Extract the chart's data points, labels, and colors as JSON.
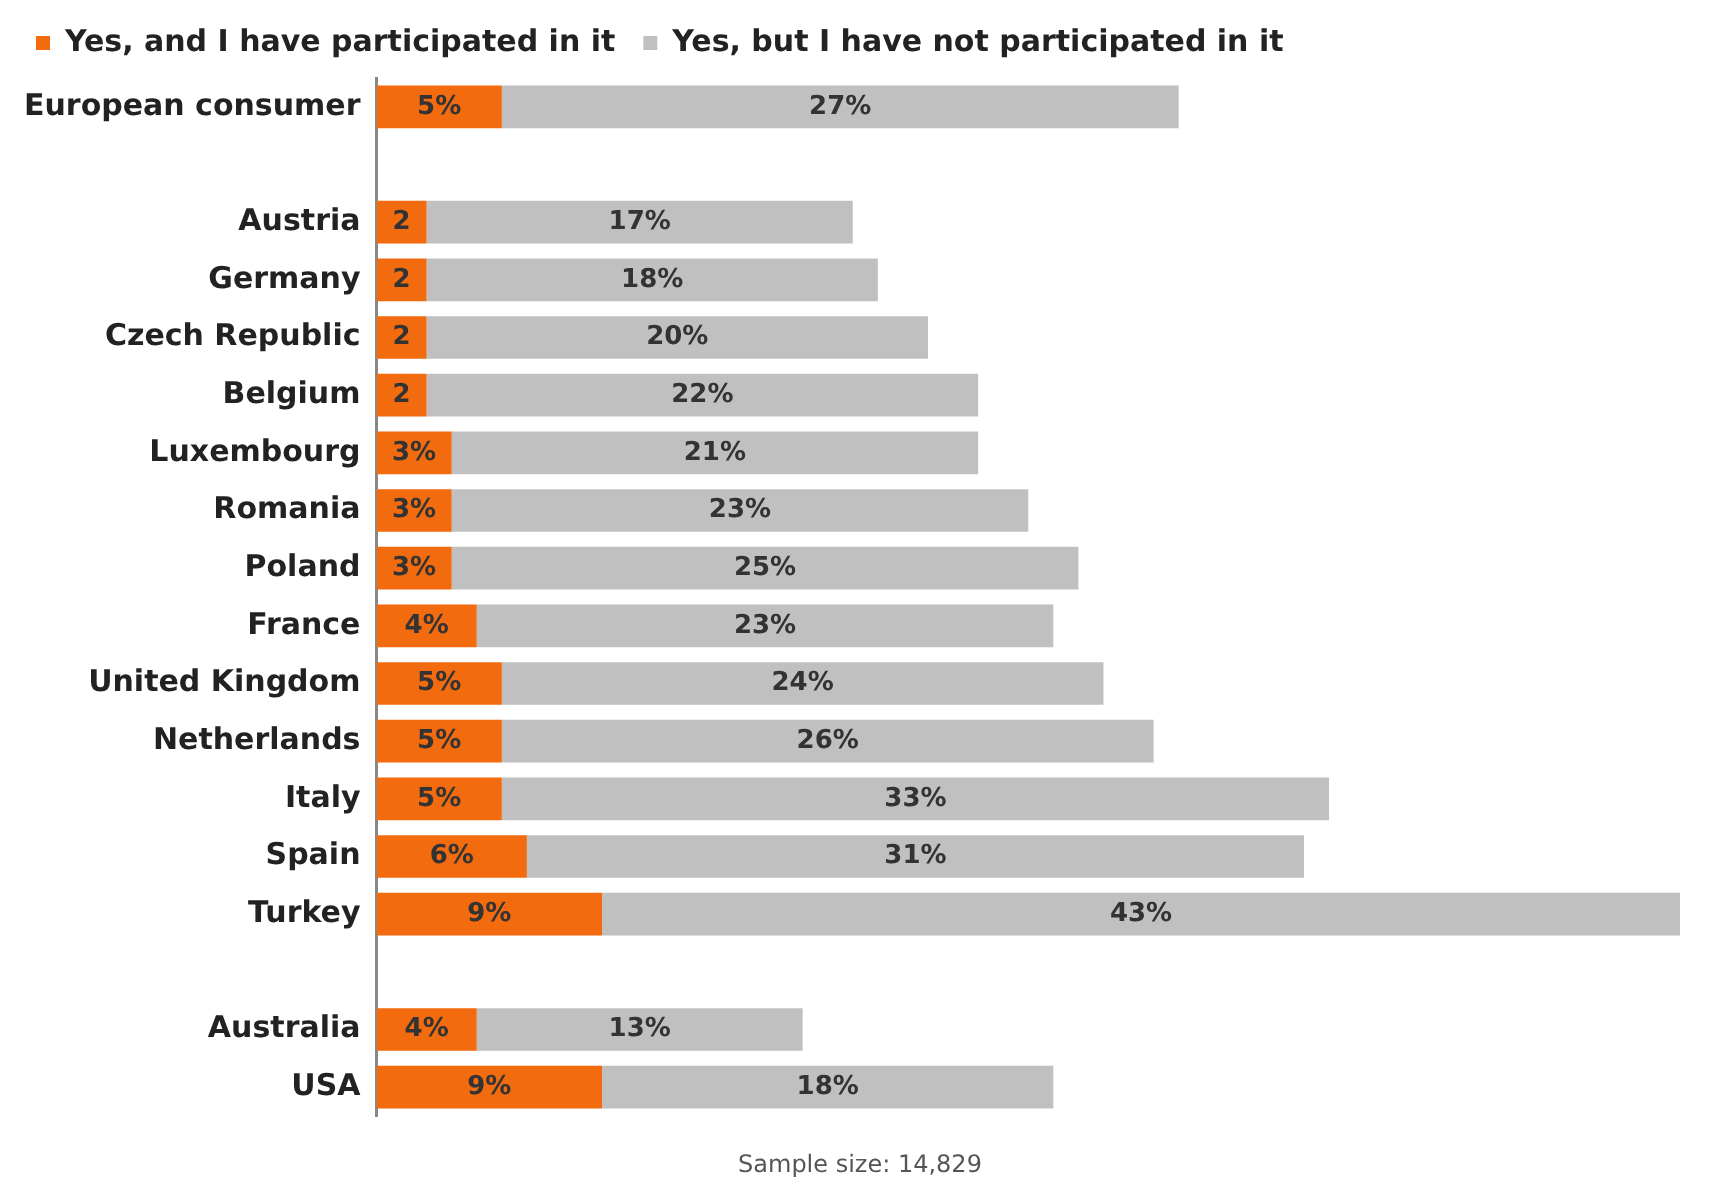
{
  "chart_data": {
    "type": "bar",
    "orientation": "horizontal",
    "stacked": true,
    "categories": [
      "European consumer",
      null,
      "Austria",
      "Germany",
      "Czech Republic",
      "Belgium",
      "Luxembourg",
      "Romania",
      "Poland",
      "France",
      "United Kingdom",
      "Netherlands",
      "Italy",
      "Spain",
      "Turkey",
      null,
      "Australia",
      "USA"
    ],
    "series": [
      {
        "name": "Yes, and I have participated in it",
        "color": "#f26b0f",
        "values": [
          5,
          null,
          2,
          2,
          2,
          2,
          3,
          3,
          3,
          4,
          5,
          5,
          5,
          6,
          9,
          null,
          4,
          9
        ],
        "value_labels": [
          "5%",
          null,
          "2",
          "2",
          "2",
          "2",
          "3%",
          "3%",
          "3%",
          "4%",
          "5%",
          "5%",
          "5%",
          "6%",
          "9%",
          null,
          "4%",
          "9%"
        ]
      },
      {
        "name": "Yes, but I have not participated in it",
        "color": "#c0c0c0",
        "values": [
          27,
          null,
          17,
          18,
          20,
          22,
          21,
          23,
          25,
          23,
          24,
          26,
          33,
          31,
          43,
          null,
          13,
          18
        ],
        "value_labels": [
          "27%",
          null,
          "17%",
          "18%",
          "20%",
          "22%",
          "21%",
          "23%",
          "25%",
          "23%",
          "24%",
          "26%",
          "33%",
          "31%",
          "43%",
          null,
          "13%",
          "18%"
        ]
      }
    ],
    "legend": "top left",
    "grid": false,
    "annotations": [
      "Sample size: 14,829"
    ]
  }
}
